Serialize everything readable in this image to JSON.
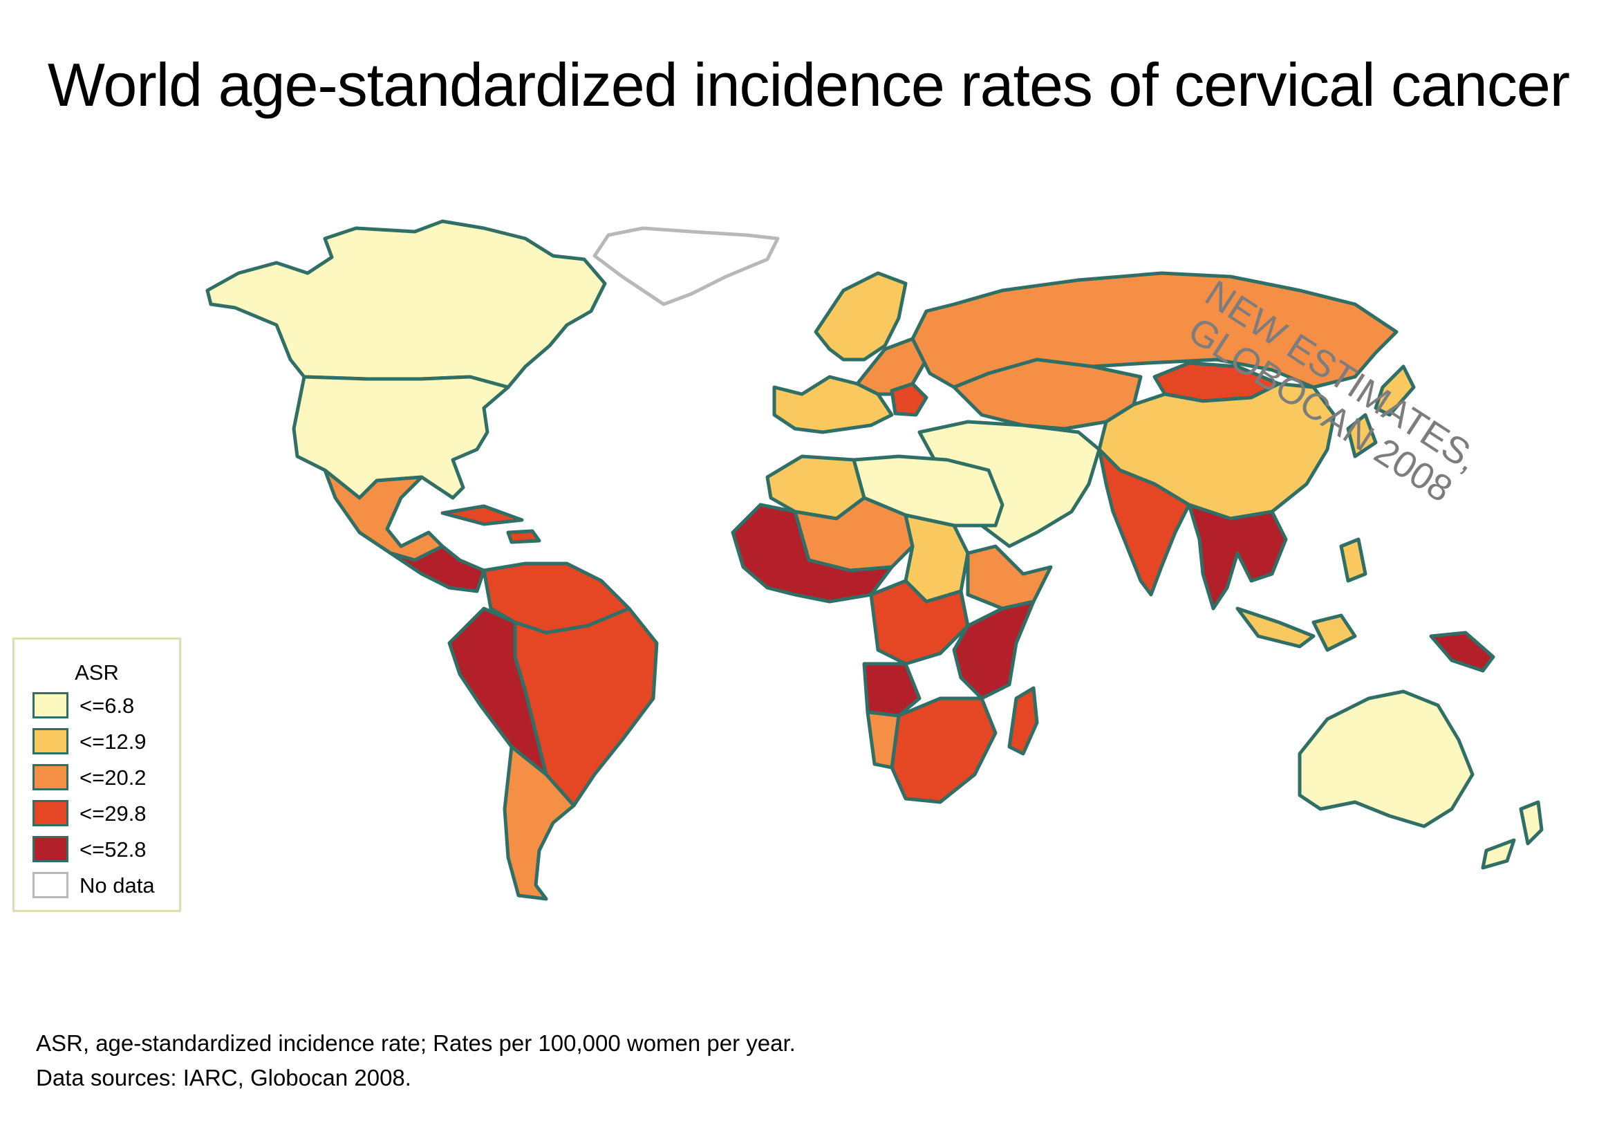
{
  "title": "World age-standardized incidence rates of cervical cancer",
  "stamp": {
    "line1": "NEW ESTIMATES,",
    "line2": "GLOBOCAN 2008"
  },
  "colors": {
    "border": "#2f6f66",
    "no_data_border": "#b8b8b8",
    "background": "#ffffff",
    "legend_frame": "#e2dcb6"
  },
  "legend": {
    "title": "ASR",
    "items": [
      {
        "label": "<=6.8",
        "color": "#fdf8c0"
      },
      {
        "label": "<=12.9",
        "color": "#f9c95f"
      },
      {
        "label": "<=20.2",
        "color": "#f48f45"
      },
      {
        "label": "<=29.8",
        "color": "#e54624"
      },
      {
        "label": "<=52.8",
        "color": "#b3202a"
      },
      {
        "label": "No data",
        "color": "#ffffff"
      }
    ]
  },
  "regions": [
    {
      "name": "Canada & Alaska",
      "class": "<=6.8"
    },
    {
      "name": "United States",
      "class": "<=6.8"
    },
    {
      "name": "Mexico",
      "class": "<=20.2"
    },
    {
      "name": "Central America",
      "class": "<=52.8"
    },
    {
      "name": "Caribbean",
      "class": "<=29.8"
    },
    {
      "name": "Greenland",
      "class": "No data"
    },
    {
      "name": "Northern South America",
      "class": "<=29.8"
    },
    {
      "name": "Brazil",
      "class": "<=29.8"
    },
    {
      "name": "Andean South America",
      "class": "<=52.8"
    },
    {
      "name": "Southern South America",
      "class": "<=20.2"
    },
    {
      "name": "Western Europe",
      "class": "<=12.9"
    },
    {
      "name": "Northern Europe",
      "class": "<=12.9"
    },
    {
      "name": "Eastern Europe",
      "class": "<=20.2"
    },
    {
      "name": "Romania & Serbia",
      "class": "<=29.8"
    },
    {
      "name": "Russia",
      "class": "<=20.2"
    },
    {
      "name": "Central Asia",
      "class": "<=20.2"
    },
    {
      "name": "Mongolia",
      "class": "<=29.8"
    },
    {
      "name": "China",
      "class": "<=12.9"
    },
    {
      "name": "Japan & Korea",
      "class": "<=12.9"
    },
    {
      "name": "Middle East",
      "class": "<=6.8"
    },
    {
      "name": "South Asia",
      "class": "<=29.8"
    },
    {
      "name": "Southeast Asia",
      "class": "<=52.8"
    },
    {
      "name": "Indonesia & Philippines",
      "class": "<=12.9"
    },
    {
      "name": "Papua New Guinea",
      "class": "<=52.8"
    },
    {
      "name": "Australia",
      "class": "<=6.8"
    },
    {
      "name": "New Zealand",
      "class": "<=6.8"
    },
    {
      "name": "North Africa",
      "class": "<=6.8"
    },
    {
      "name": "Algeria & Morocco",
      "class": "<=12.9"
    },
    {
      "name": "Sahel",
      "class": "<=20.2"
    },
    {
      "name": "West Africa",
      "class": "<=52.8"
    },
    {
      "name": "Sudan",
      "class": "<=12.9"
    },
    {
      "name": "Horn of Africa",
      "class": "<=20.2"
    },
    {
      "name": "Central Africa",
      "class": "<=29.8"
    },
    {
      "name": "East Africa",
      "class": "<=52.8"
    },
    {
      "name": "Angola",
      "class": "<=52.8"
    },
    {
      "name": "Southern Africa",
      "class": "<=29.8"
    },
    {
      "name": "Namibia",
      "class": "<=20.2"
    },
    {
      "name": "Madagascar",
      "class": "<=29.8"
    }
  ],
  "footnotes": [
    "ASR, age-standardized incidence rate; Rates per 100,000 women per year.",
    "Data sources: IARC, Globocan 2008."
  ]
}
